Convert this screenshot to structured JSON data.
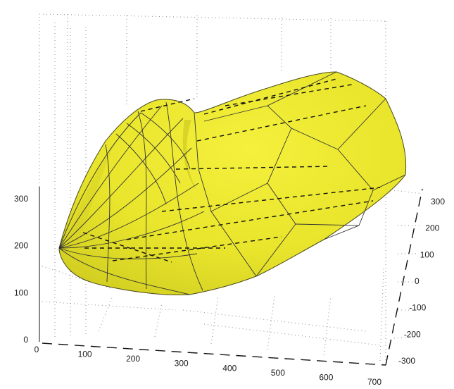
{
  "chart_data": {
    "type": "surface3d",
    "title": "",
    "x_axis": {
      "label": "",
      "range": [
        0,
        700
      ],
      "ticks": [
        "0",
        "100",
        "200",
        "300",
        "400",
        "500",
        "600",
        "700"
      ]
    },
    "y_axis": {
      "label": "",
      "range": [
        -300,
        300
      ],
      "ticks": [
        "-300",
        "-200",
        "-100",
        "0",
        "100",
        "200",
        "300"
      ]
    },
    "z_axis": {
      "label": "",
      "range": [
        0,
        300
      ],
      "ticks": [
        "0",
        "100",
        "200",
        "300"
      ]
    },
    "grid": true,
    "surface_color": "#eeea2a",
    "edge_color": "#333333"
  }
}
